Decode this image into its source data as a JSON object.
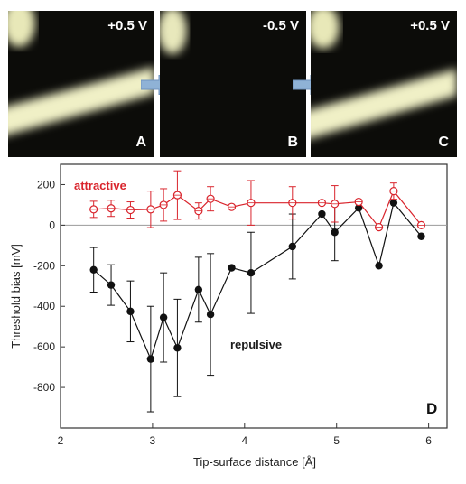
{
  "panels": [
    {
      "voltage": "+0.5 V",
      "letter": "A"
    },
    {
      "voltage": "-0.5 V",
      "letter": "B"
    },
    {
      "voltage": "+0.5 V",
      "letter": "C"
    }
  ],
  "chart_data": {
    "type": "scatter",
    "panel_label": "D",
    "xlabel": "Tip-surface distance [Å]",
    "ylabel": "Threshold bias [mV]",
    "xlim": [
      2,
      6.2
    ],
    "ylim": [
      -1000,
      300
    ],
    "xticks": [
      "2",
      "3",
      "4",
      "5",
      "6"
    ],
    "yticks": [
      "200",
      "0",
      "-200",
      "-400",
      "-600",
      "-800"
    ],
    "grid": false,
    "series": [
      {
        "name": "attractive",
        "color": "#d9242c",
        "marker": "open-circle",
        "x": [
          2.36,
          2.55,
          2.76,
          2.98,
          3.12,
          3.27,
          3.5,
          3.63,
          3.86,
          4.07,
          4.52,
          4.84,
          4.98,
          5.24,
          5.46,
          5.62,
          5.92
        ],
        "y": [
          78,
          83,
          75,
          78,
          100,
          148,
          70,
          130,
          90,
          110,
          110,
          110,
          105,
          115,
          -10,
          168,
          0
        ],
        "err": [
          40,
          40,
          40,
          90,
          80,
          120,
          40,
          60,
          0,
          110,
          80,
          0,
          90,
          0,
          0,
          40,
          0
        ]
      },
      {
        "name": "repulsive",
        "color": "#111111",
        "marker": "filled-circle",
        "x": [
          2.36,
          2.55,
          2.76,
          2.98,
          3.12,
          3.27,
          3.5,
          3.63,
          3.86,
          4.07,
          4.52,
          4.84,
          4.98,
          5.24,
          5.46,
          5.62,
          5.92
        ],
        "y": [
          -220,
          -295,
          -425,
          -660,
          -455,
          -605,
          -318,
          -440,
          -210,
          -235,
          -105,
          55,
          -35,
          85,
          -200,
          110,
          -55
        ],
        "err": [
          110,
          100,
          150,
          260,
          220,
          240,
          160,
          300,
          0,
          200,
          160,
          0,
          140,
          0,
          0,
          0,
          0
        ]
      }
    ]
  }
}
